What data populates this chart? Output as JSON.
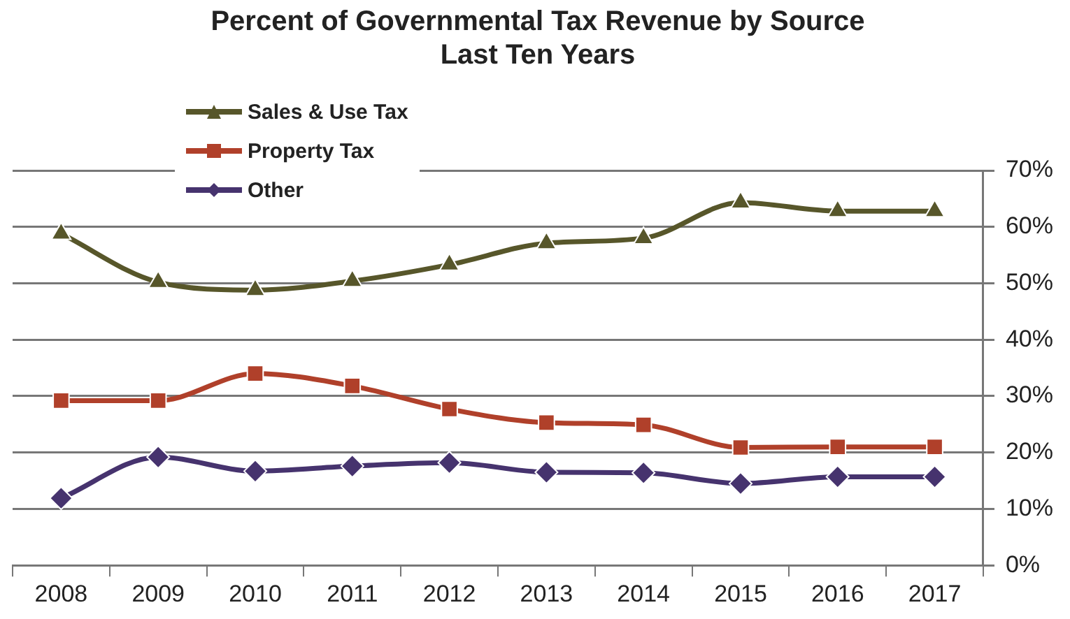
{
  "chart_data": {
    "type": "line",
    "title": "Percent of Governmental Tax Revenue by Source",
    "subtitle": "Last Ten Years",
    "categories": [
      "2008",
      "2009",
      "2010",
      "2011",
      "2012",
      "2013",
      "2014",
      "2015",
      "2016",
      "2017"
    ],
    "series": [
      {
        "name": "Sales & Use Tax",
        "color": "#57562a",
        "marker": "triangle",
        "values": [
          58.8,
          50.2,
          48.8,
          50.4,
          53.3,
          57.1,
          58.0,
          64.3,
          62.8,
          62.8
        ]
      },
      {
        "name": "Property Tax",
        "color": "#b0402a",
        "marker": "square",
        "values": [
          29.2,
          29.2,
          34.0,
          31.8,
          27.7,
          25.3,
          24.9,
          20.9,
          21.0,
          21.0
        ]
      },
      {
        "name": "Other",
        "color": "#46336e",
        "marker": "diamond",
        "values": [
          11.9,
          19.2,
          16.7,
          17.6,
          18.2,
          16.5,
          16.4,
          14.5,
          15.7,
          15.7
        ]
      }
    ],
    "ylim": [
      0,
      70
    ],
    "yticks": [
      {
        "value": 0,
        "label": "0%"
      },
      {
        "value": 10,
        "label": "10%"
      },
      {
        "value": 20,
        "label": "20%"
      },
      {
        "value": 30,
        "label": "30%"
      },
      {
        "value": 40,
        "label": "40%"
      },
      {
        "value": 50,
        "label": "50%"
      },
      {
        "value": 60,
        "label": "60%"
      },
      {
        "value": 70,
        "label": "70%"
      }
    ],
    "grid": "y",
    "legend": "top left"
  }
}
